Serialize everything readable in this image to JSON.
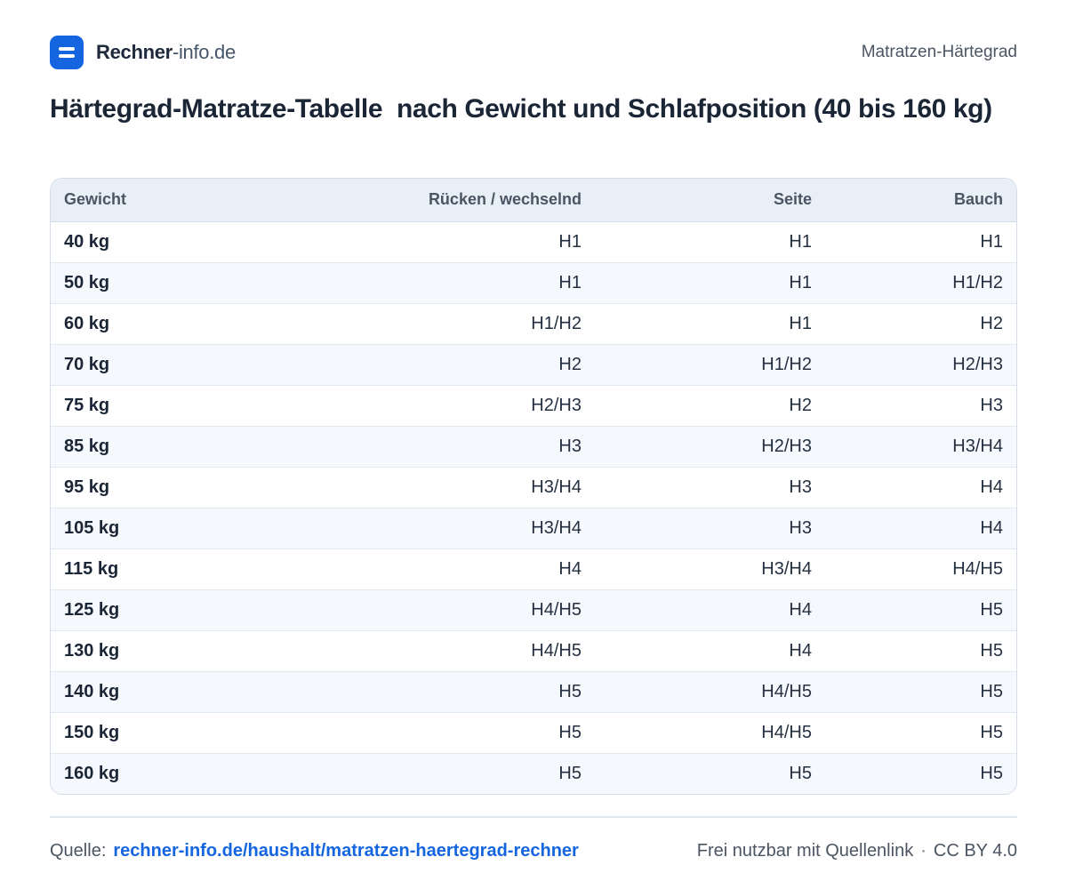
{
  "brand": {
    "name": "Rechner",
    "suffix": "-info.de"
  },
  "header": {
    "right_label": "Matratzen-Härtegrad"
  },
  "title": "Härtegrad-Matratze-Tabelle  nach Gewicht und Schlafposition (40 bis 160 kg)",
  "table": {
    "headers": [
      "Gewicht",
      "Rücken / wechselnd",
      "Seite",
      "Bauch"
    ],
    "rows": [
      [
        "40 kg",
        "H1",
        "H1",
        "H1"
      ],
      [
        "50 kg",
        "H1",
        "H1",
        "H1/H2"
      ],
      [
        "60 kg",
        "H1/H2",
        "H1",
        "H2"
      ],
      [
        "70 kg",
        "H2",
        "H1/H2",
        "H2/H3"
      ],
      [
        "75 kg",
        "H2/H3",
        "H2",
        "H3"
      ],
      [
        "85 kg",
        "H3",
        "H2/H3",
        "H3/H4"
      ],
      [
        "95 kg",
        "H3/H4",
        "H3",
        "H4"
      ],
      [
        "105 kg",
        "H3/H4",
        "H3",
        "H4"
      ],
      [
        "115 kg",
        "H4",
        "H3/H4",
        "H4/H5"
      ],
      [
        "125 kg",
        "H4/H5",
        "H4",
        "H5"
      ],
      [
        "130 kg",
        "H4/H5",
        "H4",
        "H5"
      ],
      [
        "140 kg",
        "H5",
        "H4/H5",
        "H5"
      ],
      [
        "150 kg",
        "H5",
        "H4/H5",
        "H5"
      ],
      [
        "160 kg",
        "H5",
        "H5",
        "H5"
      ]
    ]
  },
  "footer": {
    "source_label": "Quelle:",
    "source_link": "rechner-info.de/haushalt/matratzen-haertegrad-rechner",
    "usage": "Frei nutzbar mit Quellenlink",
    "separator": "·",
    "license": "CC BY 4.0"
  },
  "colors": {
    "accent": "#1565e0",
    "header_bg": "#e9eff7",
    "stripe_bg": "#f5f8fc",
    "border": "#d5dde8"
  }
}
